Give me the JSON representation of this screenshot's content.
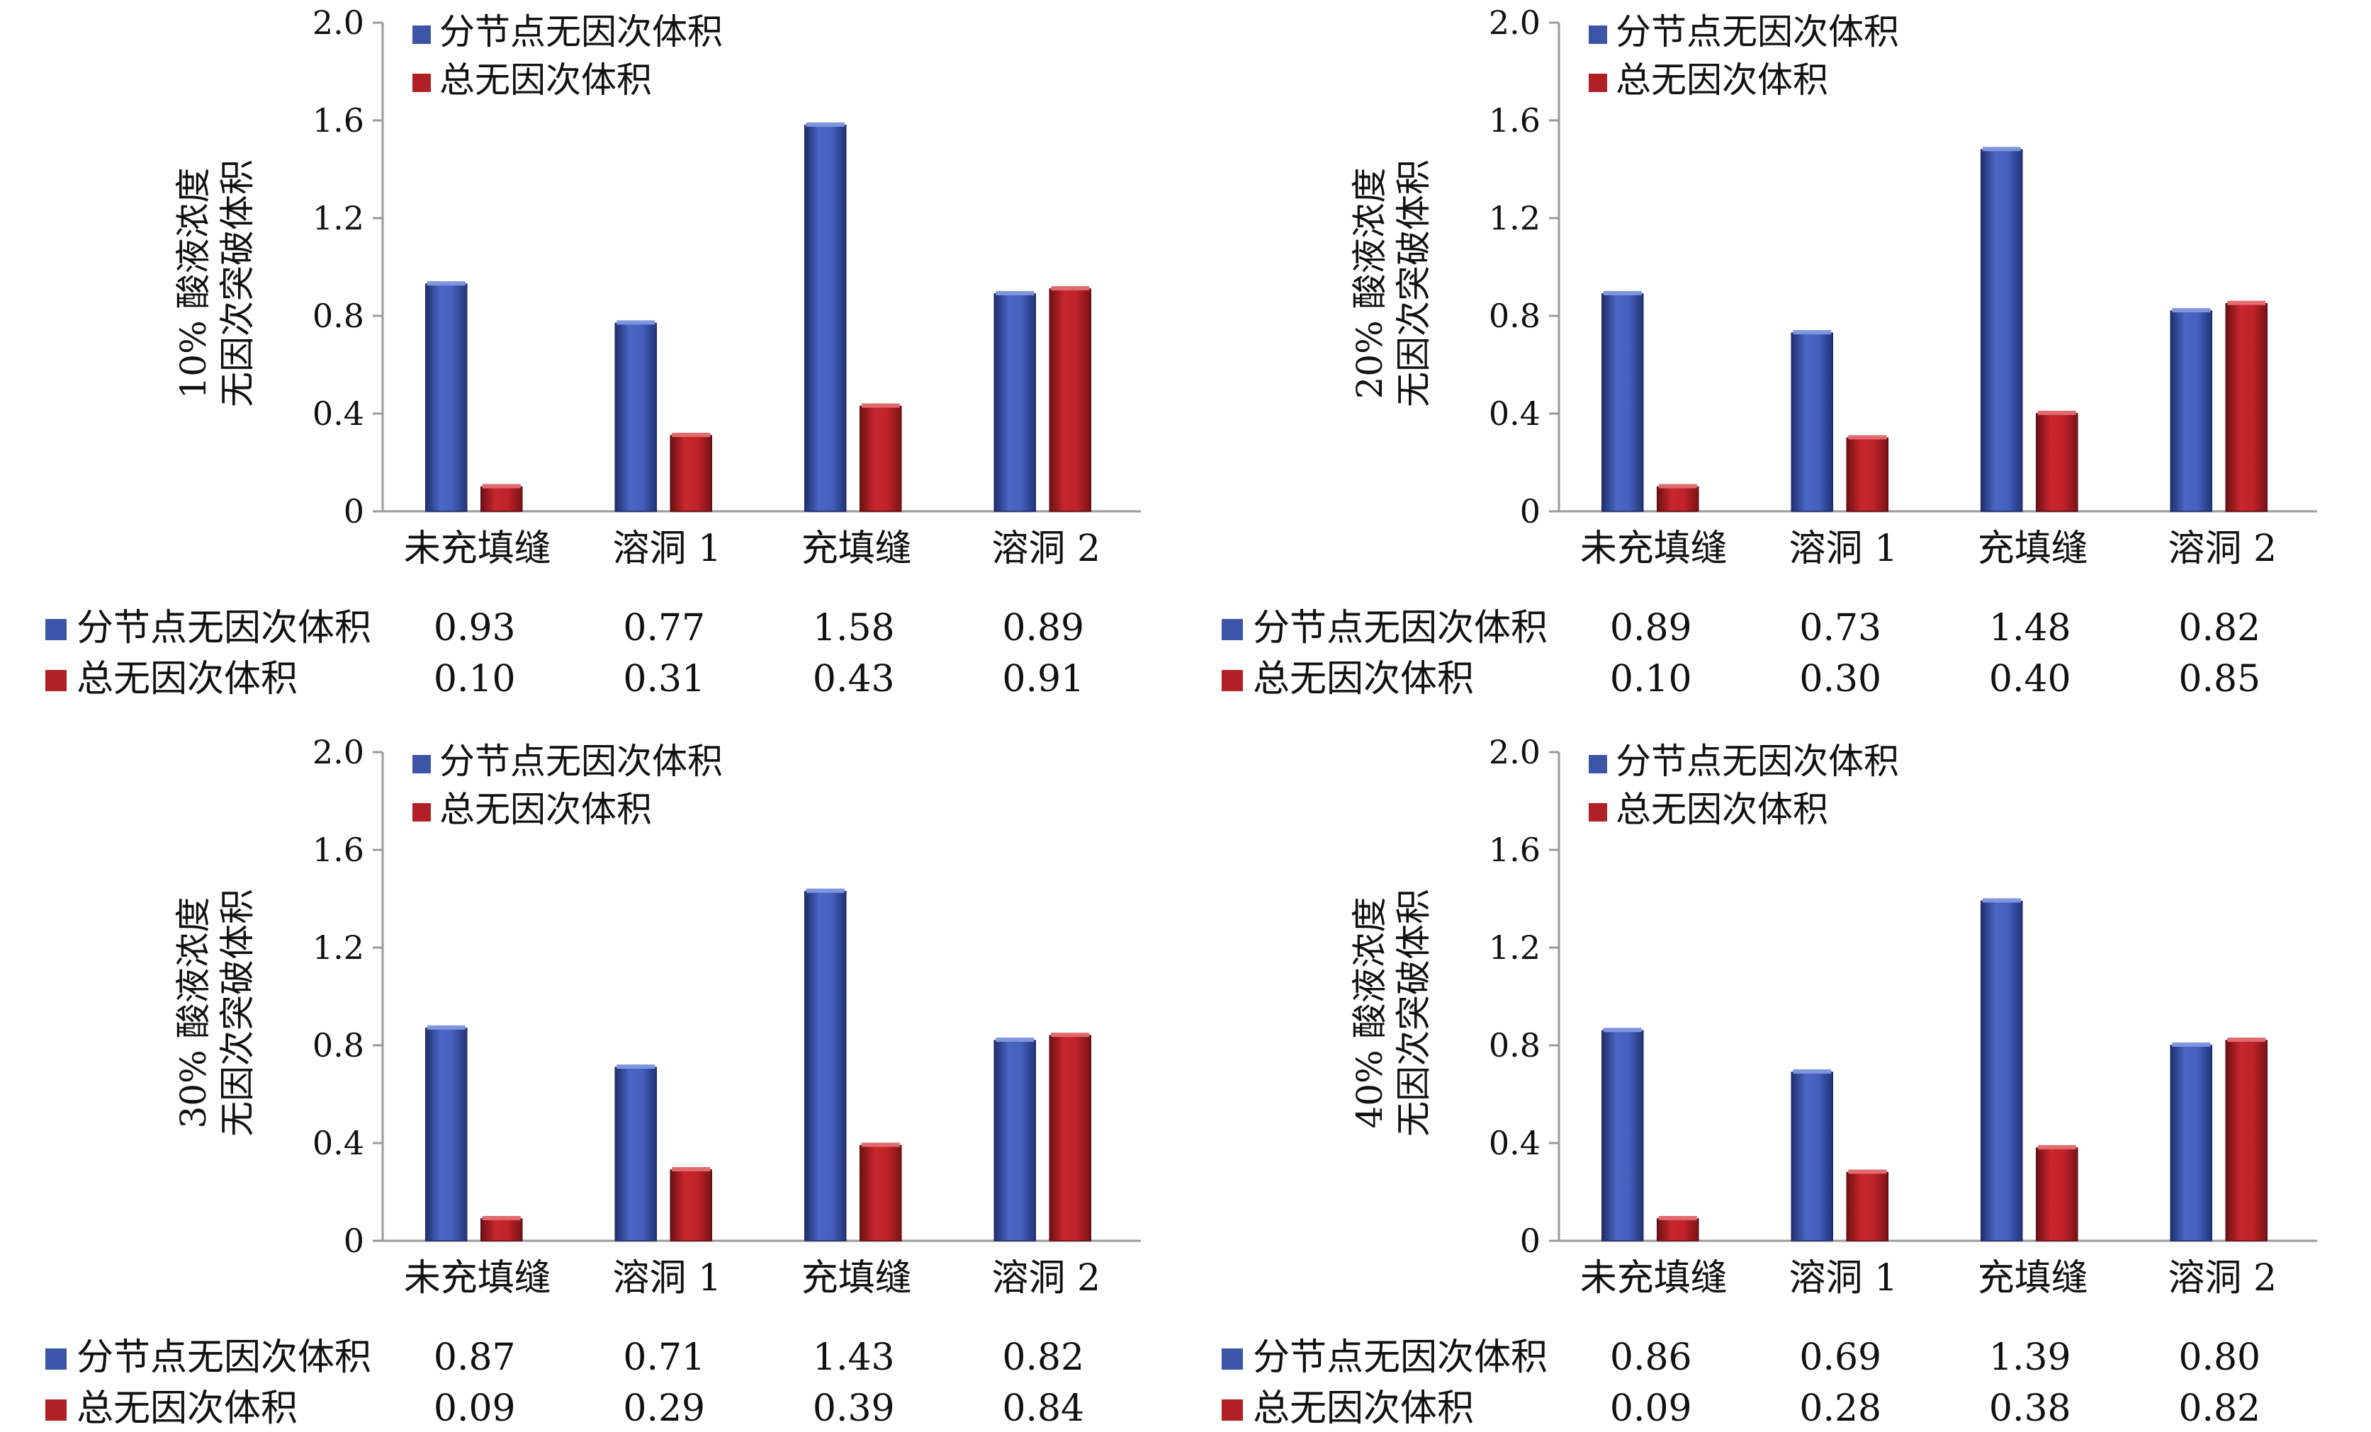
{
  "colors": {
    "series1": "#3d55a8",
    "series2": "#b02025"
  },
  "chart_data": [
    {
      "type": "bar",
      "ylabel": [
        "10% 酸液浓度",
        "无因次突破体积"
      ],
      "categories": [
        "未充填缝",
        "溶洞 1",
        "充填缝",
        "溶洞 2"
      ],
      "ylim": [
        0,
        2.0
      ],
      "yticks": [
        "0",
        "0.4",
        "0.8",
        "1.2",
        "1.6",
        "2.0"
      ],
      "legend_position": "top-left",
      "series": [
        {
          "name": "分节点无因次体积",
          "values": [
            0.93,
            0.77,
            1.58,
            0.89
          ],
          "labels": [
            "0.93",
            "0.77",
            "1.58",
            "0.89"
          ]
        },
        {
          "name": "总无因次体积",
          "values": [
            0.1,
            0.31,
            0.43,
            0.91
          ],
          "labels": [
            "0.10",
            "0.31",
            "0.43",
            "0.91"
          ]
        }
      ]
    },
    {
      "type": "bar",
      "ylabel": [
        "20% 酸液浓度",
        "无因次突破体积"
      ],
      "categories": [
        "未充填缝",
        "溶洞 1",
        "充填缝",
        "溶洞 2"
      ],
      "ylim": [
        0,
        2.0
      ],
      "yticks": [
        "0",
        "0.4",
        "0.8",
        "1.2",
        "1.6",
        "2.0"
      ],
      "legend_position": "top-left",
      "series": [
        {
          "name": "分节点无因次体积",
          "values": [
            0.89,
            0.73,
            1.48,
            0.82
          ],
          "labels": [
            "0.89",
            "0.73",
            "1.48",
            "0.82"
          ]
        },
        {
          "name": "总无因次体积",
          "values": [
            0.1,
            0.3,
            0.4,
            0.85
          ],
          "labels": [
            "0.10",
            "0.30",
            "0.40",
            "0.85"
          ]
        }
      ]
    },
    {
      "type": "bar",
      "ylabel": [
        "30% 酸液浓度",
        "无因次突破体积"
      ],
      "categories": [
        "未充填缝",
        "溶洞 1",
        "充填缝",
        "溶洞 2"
      ],
      "ylim": [
        0,
        2.0
      ],
      "yticks": [
        "0",
        "0.4",
        "0.8",
        "1.2",
        "1.6",
        "2.0"
      ],
      "legend_position": "top-left",
      "series": [
        {
          "name": "分节点无因次体积",
          "values": [
            0.87,
            0.71,
            1.43,
            0.82
          ],
          "labels": [
            "0.87",
            "0.71",
            "1.43",
            "0.82"
          ]
        },
        {
          "name": "总无因次体积",
          "values": [
            0.09,
            0.29,
            0.39,
            0.84
          ],
          "labels": [
            "0.09",
            "0.29",
            "0.39",
            "0.84"
          ]
        }
      ]
    },
    {
      "type": "bar",
      "ylabel": [
        "40% 酸液浓度",
        "无因次突破体积"
      ],
      "categories": [
        "未充填缝",
        "溶洞 1",
        "充填缝",
        "溶洞 2"
      ],
      "ylim": [
        0,
        2.0
      ],
      "yticks": [
        "0",
        "0.4",
        "0.8",
        "1.2",
        "1.6",
        "2.0"
      ],
      "legend_position": "top-left",
      "series": [
        {
          "name": "分节点无因次体积",
          "values": [
            0.86,
            0.69,
            1.39,
            0.8
          ],
          "labels": [
            "0.86",
            "0.69",
            "1.39",
            "0.80"
          ]
        },
        {
          "name": "总无因次体积",
          "values": [
            0.09,
            0.28,
            0.38,
            0.82
          ],
          "labels": [
            "0.09",
            "0.28",
            "0.38",
            "0.82"
          ]
        }
      ]
    }
  ]
}
